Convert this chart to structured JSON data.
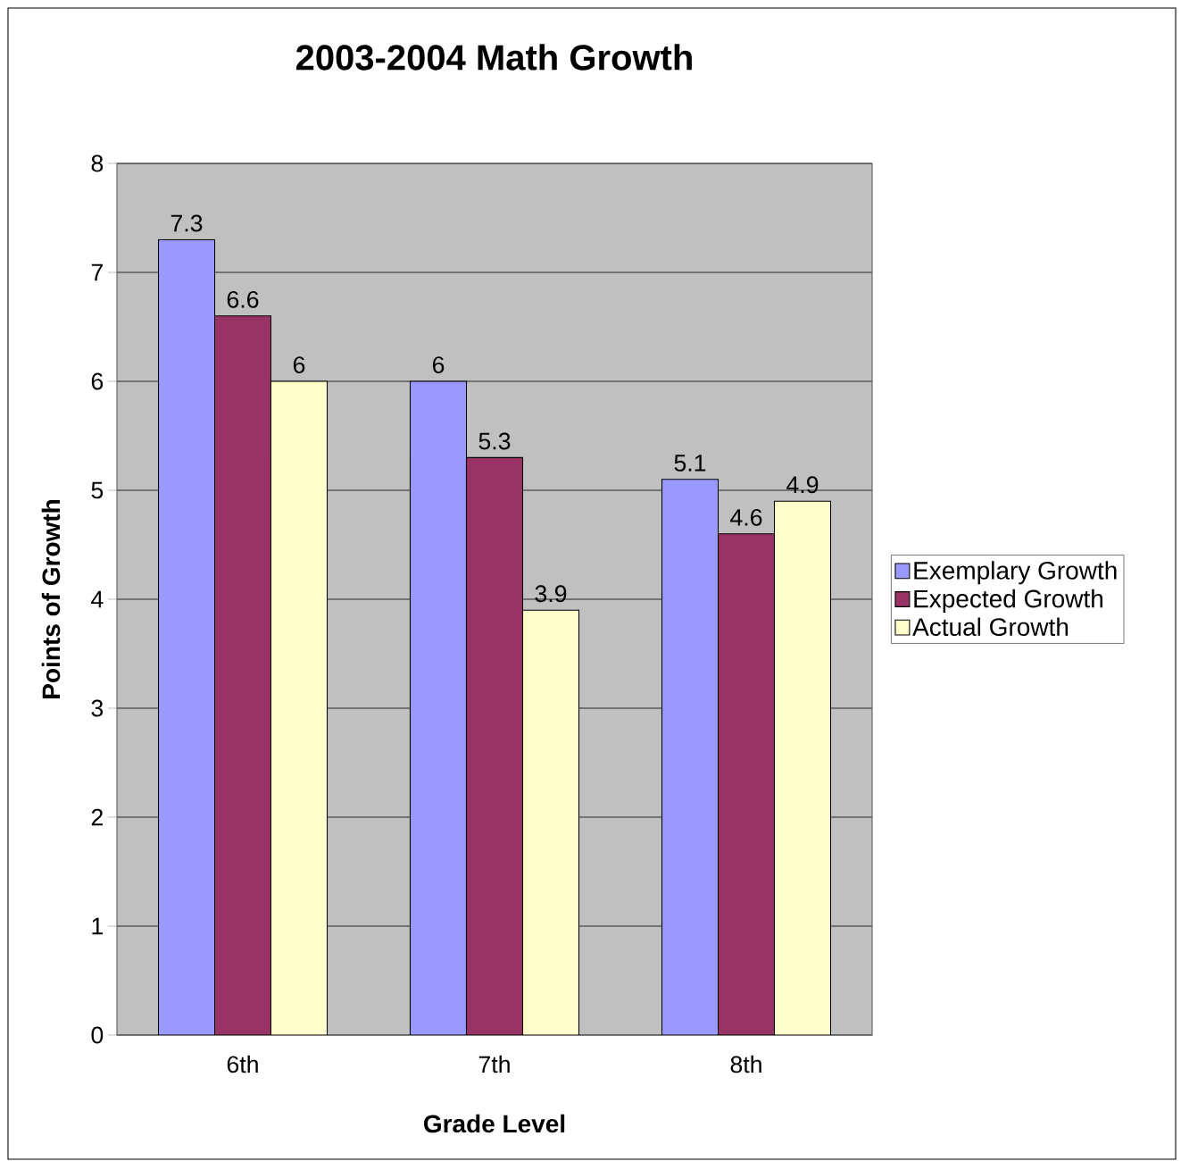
{
  "chart_data": {
    "type": "bar",
    "title": "2003-2004 Math Growth",
    "xlabel": "Grade Level",
    "ylabel": "Points of Growth",
    "categories": [
      "6th",
      "7th",
      "8th"
    ],
    "series": [
      {
        "name": "Exemplary Growth",
        "color": "#9999ff",
        "values": [
          7.3,
          6,
          5.1
        ]
      },
      {
        "name": "Expected Growth",
        "color": "#993366",
        "values": [
          6.6,
          5.3,
          4.6
        ]
      },
      {
        "name": "Actual Growth",
        "color": "#ffffcc",
        "values": [
          6,
          3.9,
          4.9
        ]
      }
    ],
    "ylim": [
      0,
      8
    ],
    "yticks": [
      0,
      1,
      2,
      3,
      4,
      5,
      6,
      7,
      8
    ],
    "grid": "y",
    "legend": "right",
    "data_labels": true
  }
}
